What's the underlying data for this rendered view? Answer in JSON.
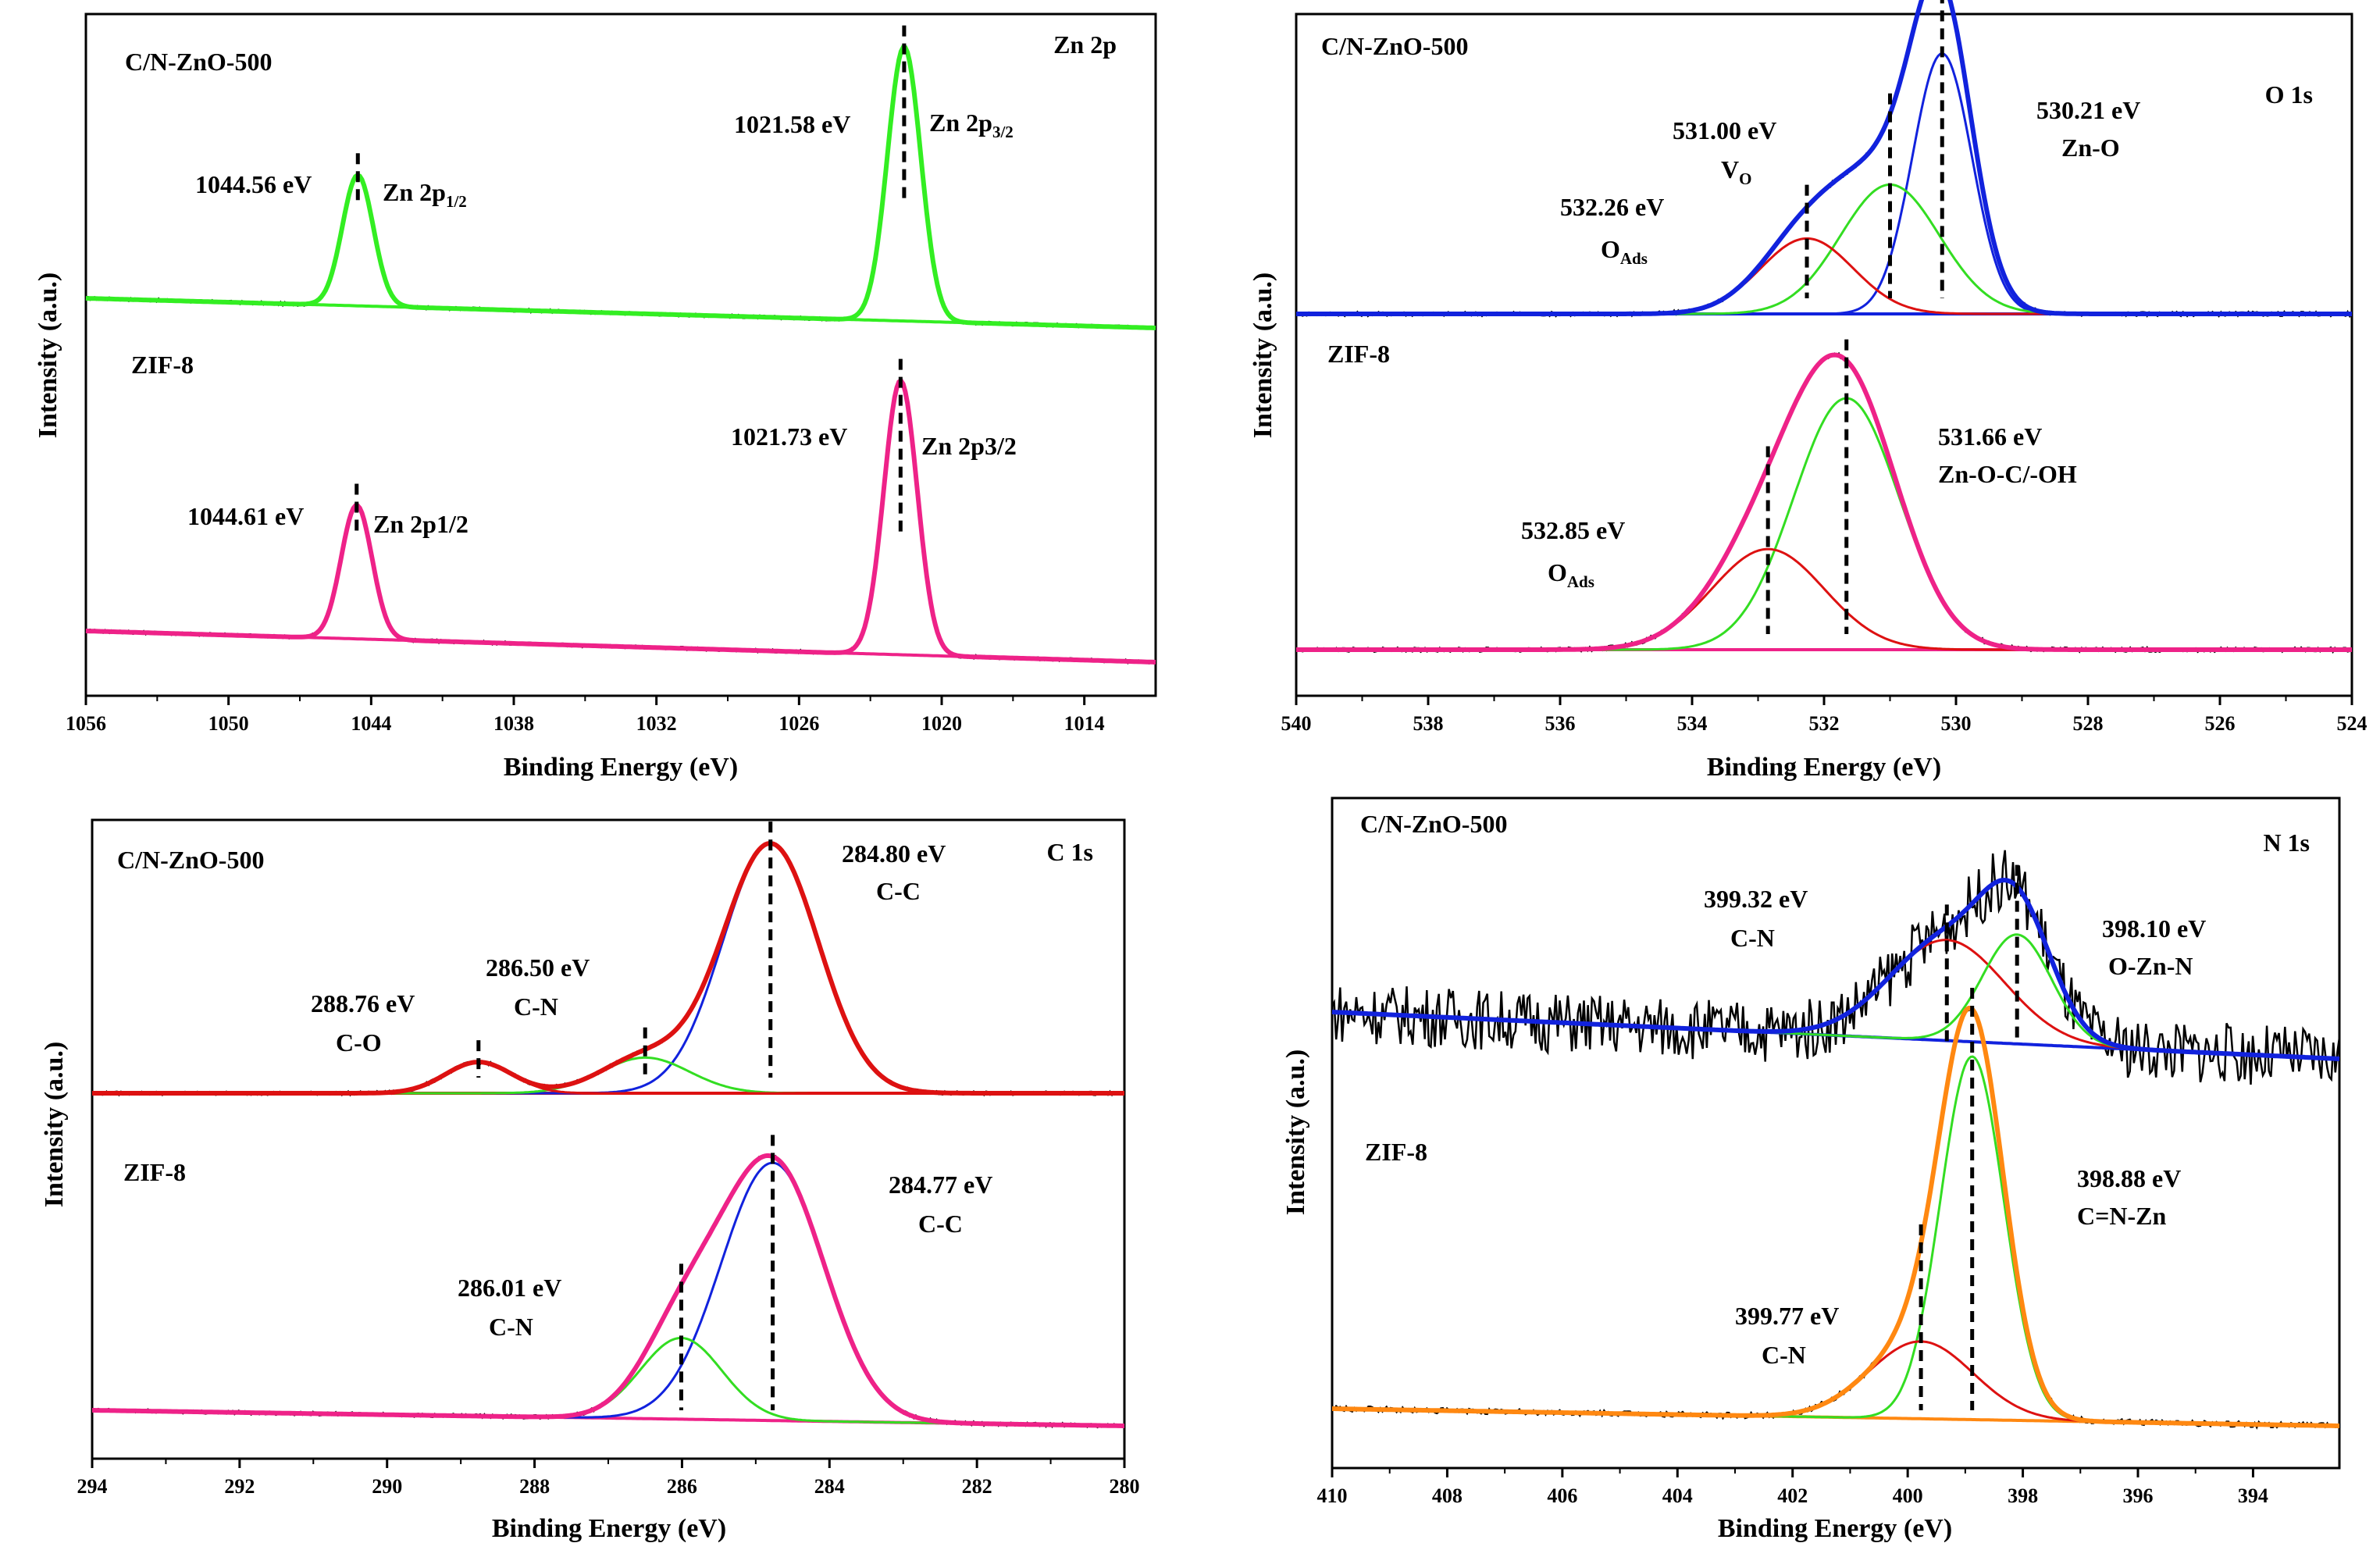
{
  "chart_data": [
    {
      "type": "line",
      "title": "Zn 2p",
      "xlabel": "Binding Energy (eV)",
      "ylabel": "Intensity (a.u.)",
      "x_ticks": [
        "1056",
        "1050",
        "1044",
        "1038",
        "1032",
        "1026",
        "1020",
        "1014"
      ],
      "xlim": [
        1056,
        1011
      ],
      "upper": {
        "sample": "C/N-ZnO-500",
        "fit_color": "#33ee22",
        "peaks": [
          {
            "be": 1044.56,
            "amp": 0.93,
            "width": 0.65,
            "label": "1044.56 eV",
            "name": "Zn 2p",
            "sub": "1/2"
          },
          {
            "be": 1021.58,
            "amp": 1.95,
            "width": 0.7,
            "label": "1021.58 eV",
            "name": "Zn 2p",
            "sub": "3/2"
          }
        ]
      },
      "lower": {
        "sample": "ZIF-8",
        "fit_color": "#ee2288",
        "peaks": [
          {
            "be": 1044.61,
            "amp": 0.95,
            "width": 0.65,
            "label": "1044.61 eV",
            "name": "Zn 2p1/2",
            "sub": ""
          },
          {
            "be": 1021.73,
            "amp": 1.95,
            "width": 0.7,
            "label": "1021.73 eV",
            "name": "Zn 2p3/2",
            "sub": ""
          }
        ]
      }
    },
    {
      "type": "line",
      "title": "O 1s",
      "xlabel": "Binding Energy (eV)",
      "ylabel": "Intensity (a.u.)",
      "x_ticks": [
        "540",
        "538",
        "536",
        "534",
        "532",
        "530",
        "528",
        "526",
        "524"
      ],
      "xlim": [
        540,
        524
      ],
      "upper": {
        "sample": "C/N-ZnO-500",
        "envelope_color": "#1122dd",
        "components": [
          {
            "be": 530.21,
            "amp": 1.45,
            "width": 0.45,
            "color": "#1122dd",
            "label": "530.21 eV",
            "name": "Zn-O",
            "sub": ""
          },
          {
            "be": 531.0,
            "amp": 0.72,
            "width": 0.75,
            "color": "#33dd22",
            "label": "531.00 eV",
            "name": "V",
            "sub": "O"
          },
          {
            "be": 532.26,
            "amp": 0.42,
            "width": 0.7,
            "color": "#dd1111",
            "label": "532.26 eV",
            "name": "O",
            "sub": "Ads"
          }
        ]
      },
      "lower": {
        "sample": "ZIF-8",
        "envelope_color": "#ee2288",
        "components": [
          {
            "be": 531.66,
            "amp": 1.4,
            "width": 0.8,
            "color": "#33dd22",
            "label": "531.66 eV",
            "name": "Zn-O-C/-OH",
            "sub": ""
          },
          {
            "be": 532.85,
            "amp": 0.56,
            "width": 0.85,
            "color": "#dd1111",
            "label": "532.85 eV",
            "name": "O",
            "sub": "Ads"
          }
        ]
      }
    },
    {
      "type": "line",
      "title": "C 1s",
      "xlabel": "Binding Energy (eV)",
      "ylabel": "Intensity (a.u.)",
      "x_ticks": [
        "294",
        "292",
        "290",
        "288",
        "286",
        "284",
        "282",
        "280"
      ],
      "xlim": [
        294,
        280
      ],
      "upper": {
        "sample": "C/N-ZnO-500",
        "envelope_color": "#dd1111",
        "components": [
          {
            "be": 284.8,
            "amp": 1.68,
            "width": 0.65,
            "color": "#1122dd",
            "label": "284.80 eV",
            "name": "C-C",
            "sub": ""
          },
          {
            "be": 286.5,
            "amp": 0.24,
            "width": 0.6,
            "color": "#33dd22",
            "label": "286.50 eV",
            "name": "C-N",
            "sub": ""
          },
          {
            "be": 288.76,
            "amp": 0.21,
            "width": 0.45,
            "color": "#dd1111",
            "label": "288.76 eV",
            "name": "C-O",
            "sub": ""
          }
        ]
      },
      "lower": {
        "sample": "ZIF-8",
        "envelope_color": "#ee2288",
        "components": [
          {
            "be": 284.77,
            "amp": 1.65,
            "width": 0.7,
            "color": "#1122dd",
            "label": "284.77 eV",
            "name": "C-C",
            "sub": ""
          },
          {
            "be": 286.01,
            "amp": 0.52,
            "width": 0.55,
            "color": "#33dd22",
            "label": "286.01 eV",
            "name": "C-N",
            "sub": ""
          }
        ]
      }
    },
    {
      "type": "line",
      "title": "N 1s",
      "xlabel": "Binding Energy (eV)",
      "ylabel": "Intensity (a.u.)",
      "x_ticks": [
        "410",
        "408",
        "406",
        "404",
        "402",
        "400",
        "398",
        "396",
        "394"
      ],
      "xlim": [
        410,
        392.5
      ],
      "upper": {
        "sample": "C/N-ZnO-500",
        "envelope_color": "#1122dd",
        "components": [
          {
            "be": 399.32,
            "amp": 0.46,
            "width": 1.0,
            "color": "#dd1111",
            "label": "399.32 eV",
            "name": "C-N",
            "sub": ""
          },
          {
            "be": 398.1,
            "amp": 0.5,
            "width": 0.6,
            "color": "#33dd22",
            "label": "398.10 eV",
            "name": "O-Zn-N",
            "sub": ""
          }
        ]
      },
      "lower": {
        "sample": "ZIF-8",
        "envelope_color": "#ff8811",
        "components": [
          {
            "be": 398.88,
            "amp": 1.55,
            "width": 0.55,
            "color": "#33dd22",
            "label": "398.88 eV",
            "name": "C=N-Zn",
            "sub": ""
          },
          {
            "be": 399.77,
            "amp": 0.33,
            "width": 0.9,
            "color": "#dd1111",
            "label": "399.77 eV",
            "name": "C-N",
            "sub": ""
          }
        ]
      }
    }
  ]
}
